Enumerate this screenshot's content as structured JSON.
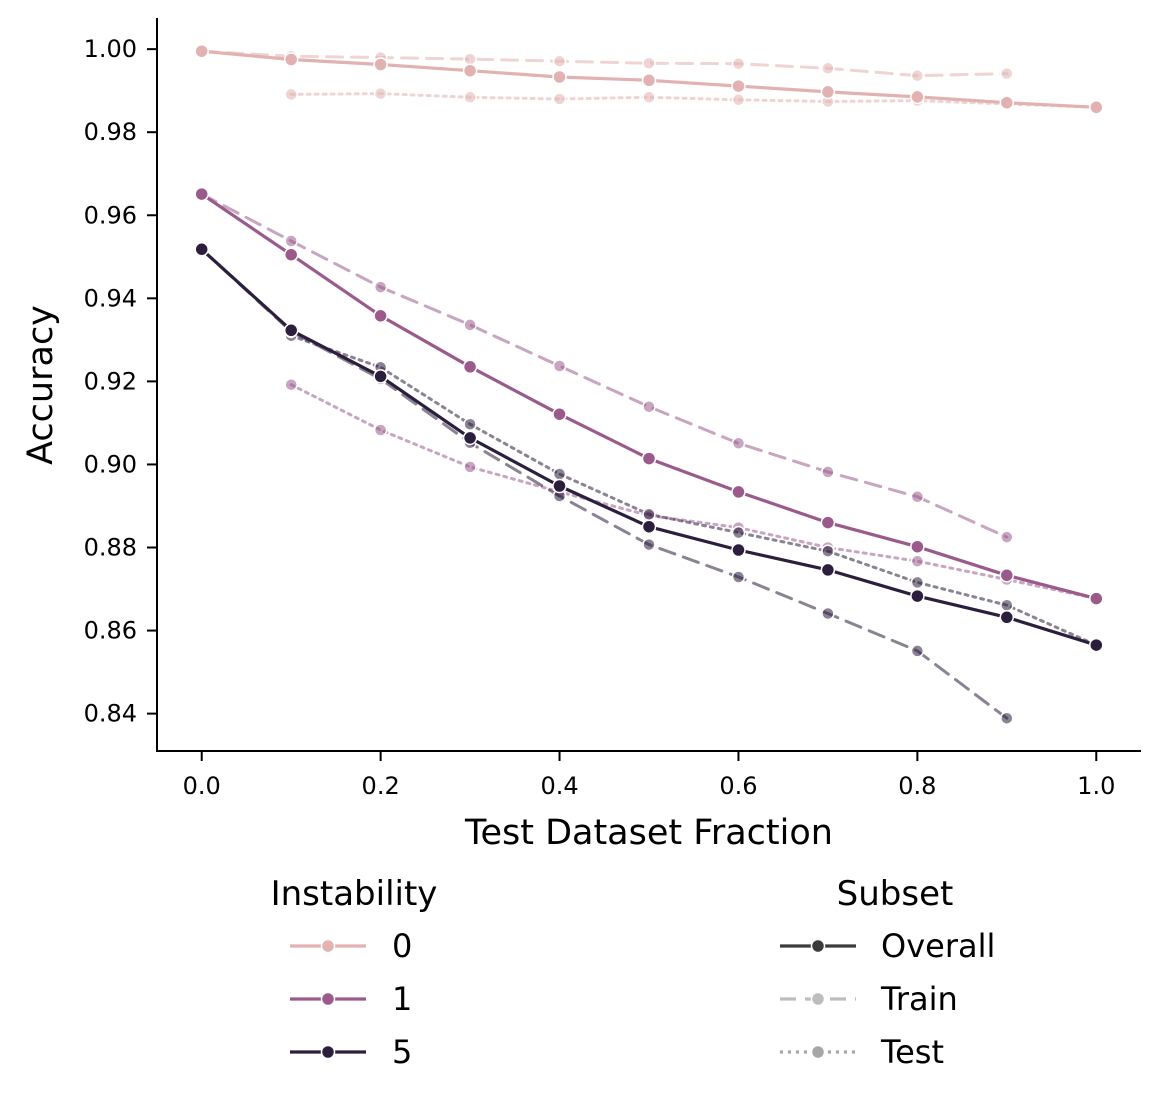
{
  "chart_data": {
    "type": "line",
    "title": "",
    "xlabel": "Test Dataset Fraction",
    "ylabel": "Accuracy",
    "xlim": [
      -0.05,
      1.05
    ],
    "ylim": [
      0.831,
      1.0075
    ],
    "x_ticks": [
      0.0,
      0.2,
      0.4,
      0.6,
      0.8,
      1.0
    ],
    "x_tick_labels": [
      "0.0",
      "0.2",
      "0.4",
      "0.6",
      "0.8",
      "1.0"
    ],
    "y_ticks": [
      0.84,
      0.86,
      0.88,
      0.9,
      0.92,
      0.94,
      0.96,
      0.98,
      1.0
    ],
    "y_tick_labels": [
      "0.84",
      "0.86",
      "0.88",
      "0.90",
      "0.92",
      "0.94",
      "0.96",
      "0.98",
      "1.00"
    ],
    "grid": false,
    "colors": {
      "instability_0": "#e2b1b1",
      "instability_1": "#9a5b8c",
      "instability_5": "#2c1e3d",
      "legend_overall": "#3b3b3b",
      "legend_train": "#bdbdbd",
      "legend_test": "#a6a6a6"
    },
    "series": [
      {
        "name": "Instability 0 - Overall",
        "instability": "0",
        "subset": "Overall",
        "x": [
          0.0,
          0.1,
          0.2,
          0.3,
          0.4,
          0.5,
          0.6,
          0.7,
          0.8,
          0.9,
          1.0
        ],
        "values": [
          0.9995,
          0.9975,
          0.9963,
          0.9948,
          0.9933,
          0.9925,
          0.9911,
          0.9897,
          0.9885,
          0.9871,
          0.986
        ]
      },
      {
        "name": "Instability 0 - Train",
        "instability": "0",
        "subset": "Train",
        "x": [
          0.0,
          0.1,
          0.2,
          0.3,
          0.4,
          0.5,
          0.6,
          0.7,
          0.8,
          0.9
        ],
        "values": [
          0.9995,
          0.9983,
          0.998,
          0.9976,
          0.9971,
          0.9966,
          0.9965,
          0.9954,
          0.9936,
          0.9941
        ]
      },
      {
        "name": "Instability 0 - Test",
        "instability": "0",
        "subset": "Test",
        "x": [
          0.1,
          0.2,
          0.3,
          0.4,
          0.5,
          0.6,
          0.7,
          0.8,
          0.9,
          1.0
        ],
        "values": [
          0.9891,
          0.9893,
          0.9884,
          0.988,
          0.9884,
          0.9878,
          0.9874,
          0.9876,
          0.9868,
          0.986
        ]
      },
      {
        "name": "Instability 1 - Overall",
        "instability": "1",
        "subset": "Overall",
        "x": [
          0.0,
          0.1,
          0.2,
          0.3,
          0.4,
          0.5,
          0.6,
          0.7,
          0.8,
          0.9,
          1.0
        ],
        "values": [
          0.9651,
          0.9505,
          0.9358,
          0.9235,
          0.9121,
          0.9014,
          0.8934,
          0.886,
          0.8802,
          0.8733,
          0.8677
        ]
      },
      {
        "name": "Instability 1 - Train",
        "instability": "1",
        "subset": "Train",
        "x": [
          0.0,
          0.1,
          0.2,
          0.3,
          0.4,
          0.5,
          0.6,
          0.7,
          0.8,
          0.9
        ],
        "values": [
          0.9651,
          0.9538,
          0.9427,
          0.9336,
          0.9237,
          0.9139,
          0.9051,
          0.8982,
          0.8922,
          0.8825
        ]
      },
      {
        "name": "Instability 1 - Test",
        "instability": "1",
        "subset": "Test",
        "x": [
          0.1,
          0.2,
          0.3,
          0.4,
          0.5,
          0.6,
          0.7,
          0.8,
          0.9,
          1.0
        ],
        "values": [
          0.9192,
          0.9083,
          0.8994,
          0.8934,
          0.8877,
          0.8848,
          0.88,
          0.8767,
          0.8723,
          0.8677
        ]
      },
      {
        "name": "Instability 5 - Overall",
        "instability": "5",
        "subset": "Overall",
        "x": [
          0.0,
          0.1,
          0.2,
          0.3,
          0.4,
          0.5,
          0.6,
          0.7,
          0.8,
          0.9,
          1.0
        ],
        "values": [
          0.9518,
          0.9323,
          0.9212,
          0.9064,
          0.8948,
          0.885,
          0.8794,
          0.8746,
          0.8683,
          0.8632,
          0.8565
        ]
      },
      {
        "name": "Instability 5 - Train",
        "instability": "5",
        "subset": "Train",
        "x": [
          0.0,
          0.1,
          0.2,
          0.3,
          0.4,
          0.5,
          0.6,
          0.7,
          0.8,
          0.9
        ],
        "values": [
          0.9518,
          0.932,
          0.9206,
          0.9052,
          0.8924,
          0.8807,
          0.8729,
          0.8641,
          0.8551,
          0.8389
        ]
      },
      {
        "name": "Instability 5 - Test",
        "instability": "5",
        "subset": "Test",
        "x": [
          0.1,
          0.2,
          0.3,
          0.4,
          0.5,
          0.6,
          0.7,
          0.8,
          0.9,
          1.0
        ],
        "values": [
          0.931,
          0.9234,
          0.9097,
          0.8977,
          0.888,
          0.8836,
          0.8791,
          0.8716,
          0.8661,
          0.8565
        ]
      }
    ],
    "legends": [
      {
        "title": "Instability",
        "placement": "bottom-left",
        "entries": [
          {
            "label": "0",
            "color_key": "instability_0",
            "style": "solid"
          },
          {
            "label": "1",
            "color_key": "instability_1",
            "style": "solid"
          },
          {
            "label": "5",
            "color_key": "instability_5",
            "style": "solid"
          }
        ]
      },
      {
        "title": "Subset",
        "placement": "bottom-right",
        "entries": [
          {
            "label": "Overall",
            "color_key": "legend_overall",
            "style": "solid"
          },
          {
            "label": "Train",
            "color_key": "legend_train",
            "style": "dashed"
          },
          {
            "label": "Test",
            "color_key": "legend_test",
            "style": "dotted"
          }
        ]
      }
    ]
  }
}
